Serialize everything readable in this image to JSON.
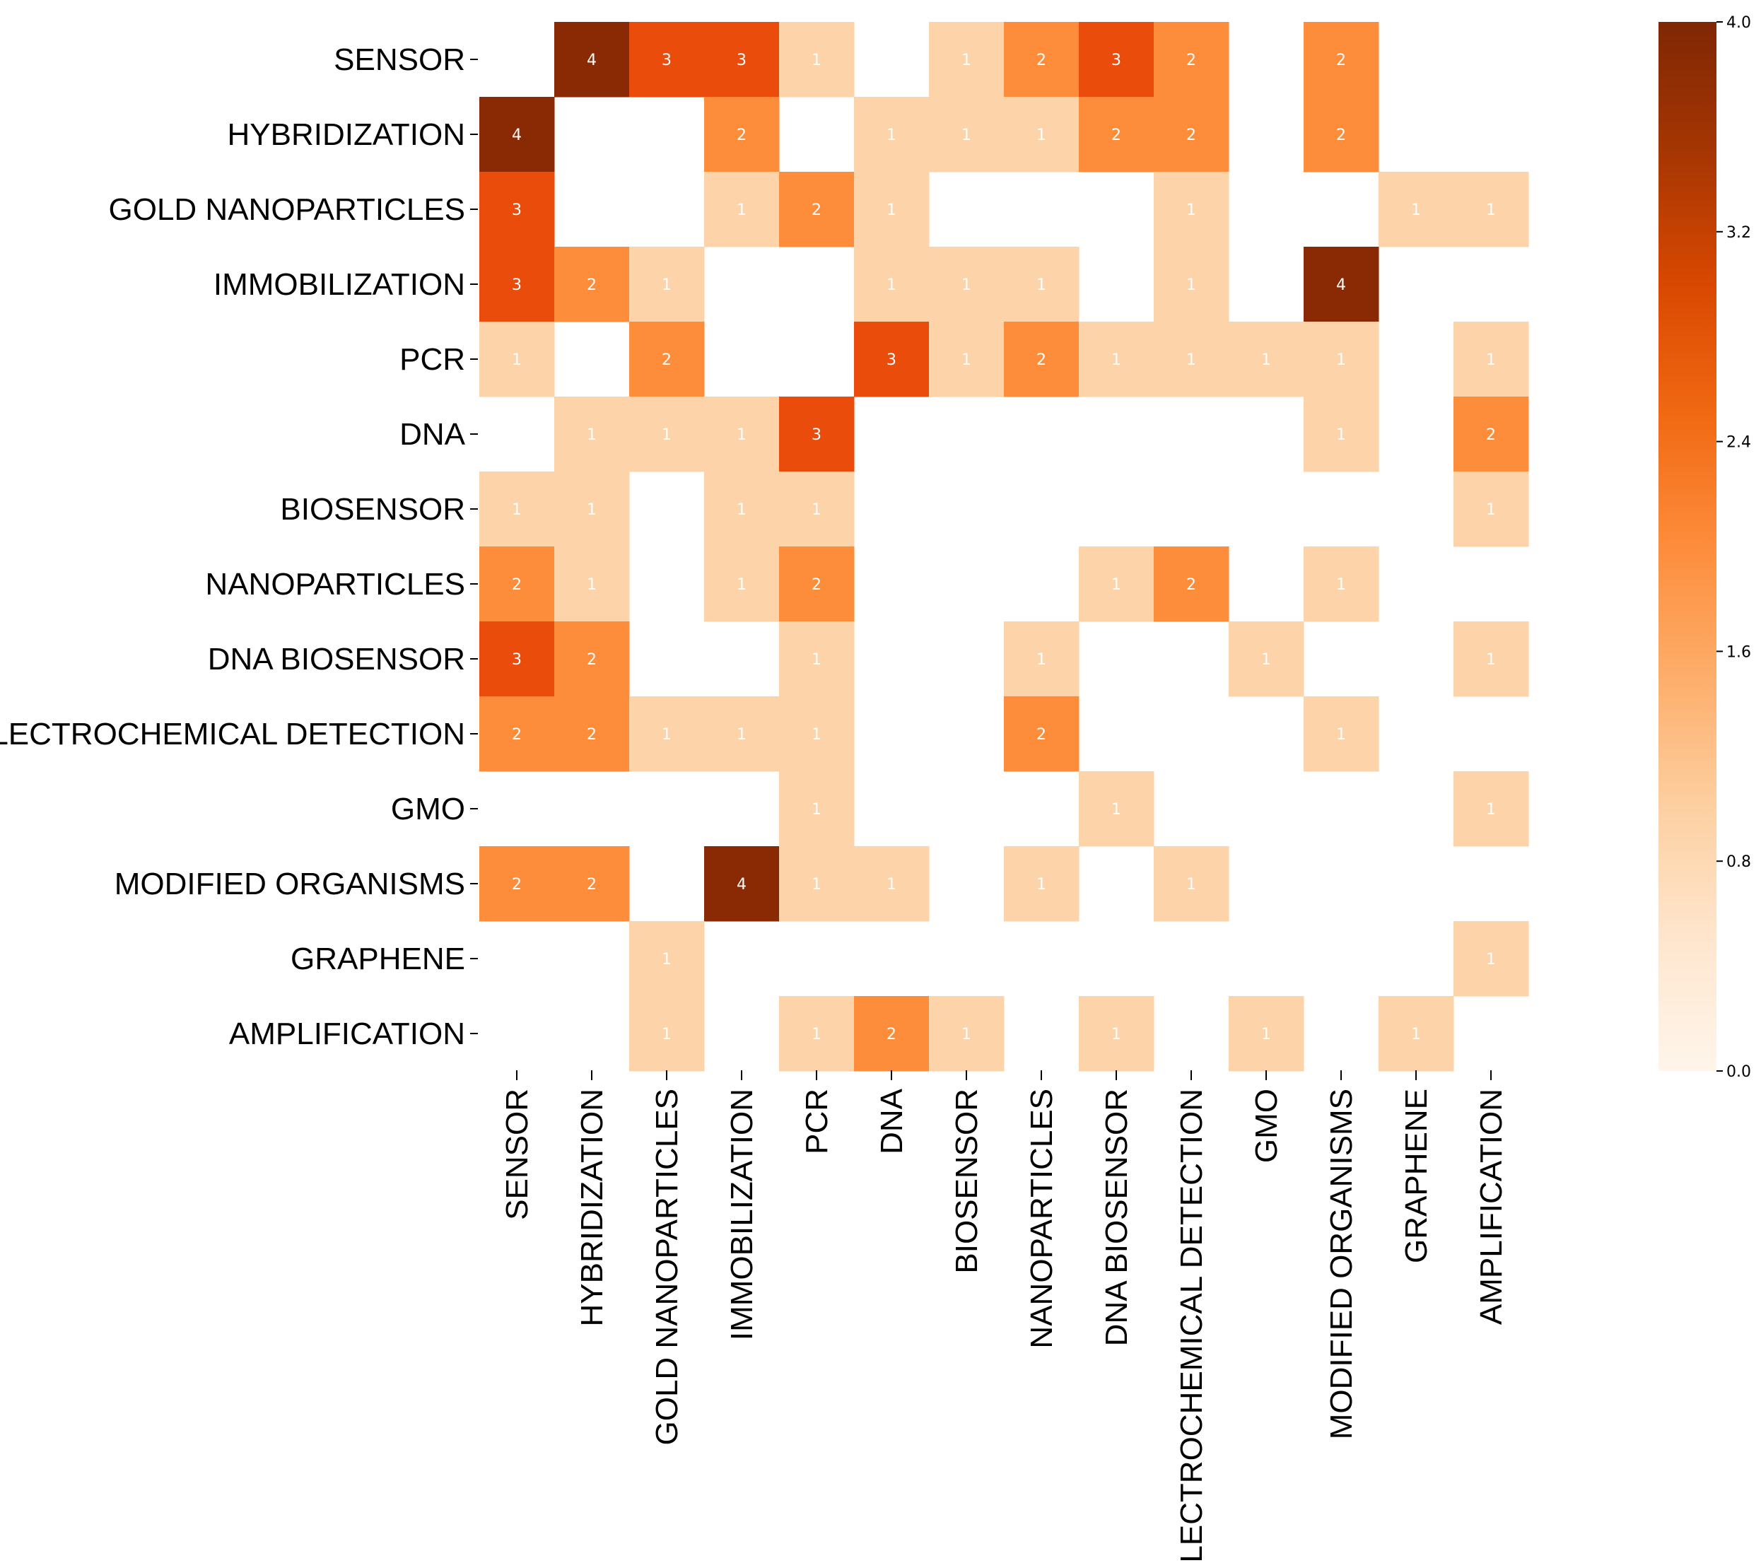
{
  "chart_data": {
    "type": "heatmap",
    "rows": [
      "SENSOR",
      "HYBRIDIZATION",
      "GOLD NANOPARTICLES",
      "IMMOBILIZATION",
      "PCR",
      "DNA",
      "BIOSENSOR",
      "NANOPARTICLES",
      "DNA BIOSENSOR",
      "ELECTROCHEMICAL DETECTION",
      "GMO",
      "MODIFIED ORGANISMS",
      "GRAPHENE",
      "AMPLIFICATION"
    ],
    "columns": [
      "SENSOR",
      "HYBRIDIZATION",
      "GOLD NANOPARTICLES",
      "IMMOBILIZATION",
      "PCR",
      "DNA",
      "BIOSENSOR",
      "NANOPARTICLES",
      "DNA BIOSENSOR",
      "ELECTROCHEMICAL DETECTION",
      "GMO",
      "MODIFIED ORGANISMS",
      "GRAPHENE",
      "AMPLIFICATION"
    ],
    "values": [
      [
        0,
        4,
        3,
        3,
        1,
        0,
        1,
        2,
        3,
        2,
        0,
        2,
        0,
        0
      ],
      [
        4,
        0,
        0,
        2,
        0,
        1,
        1,
        1,
        2,
        2,
        0,
        2,
        0,
        0
      ],
      [
        3,
        0,
        0,
        1,
        2,
        1,
        0,
        0,
        0,
        1,
        0,
        0,
        1,
        1
      ],
      [
        3,
        2,
        1,
        0,
        0,
        1,
        1,
        1,
        0,
        1,
        0,
        4,
        0,
        0
      ],
      [
        1,
        0,
        2,
        0,
        0,
        3,
        1,
        2,
        1,
        1,
        1,
        1,
        0,
        1
      ],
      [
        0,
        1,
        1,
        1,
        3,
        0,
        0,
        0,
        0,
        0,
        0,
        1,
        0,
        2
      ],
      [
        1,
        1,
        0,
        1,
        1,
        0,
        0,
        0,
        0,
        0,
        0,
        0,
        0,
        1
      ],
      [
        2,
        1,
        0,
        1,
        2,
        0,
        0,
        0,
        1,
        2,
        0,
        1,
        0,
        0
      ],
      [
        3,
        2,
        0,
        0,
        1,
        0,
        0,
        1,
        0,
        0,
        1,
        0,
        0,
        1
      ],
      [
        2,
        2,
        1,
        1,
        1,
        0,
        0,
        2,
        0,
        0,
        0,
        1,
        0,
        0
      ],
      [
        0,
        0,
        0,
        0,
        1,
        0,
        0,
        0,
        1,
        0,
        0,
        0,
        0,
        1
      ],
      [
        2,
        2,
        0,
        4,
        1,
        1,
        0,
        1,
        0,
        1,
        0,
        0,
        0,
        0
      ],
      [
        0,
        0,
        1,
        0,
        0,
        0,
        0,
        0,
        0,
        0,
        0,
        0,
        0,
        1
      ],
      [
        0,
        0,
        1,
        0,
        1,
        2,
        1,
        0,
        1,
        0,
        1,
        0,
        1,
        0
      ]
    ],
    "zero_cells_shown": false,
    "colorbar": {
      "vmin": 0.0,
      "vmax": 4.0,
      "ticks": [
        "0.0",
        "0.8",
        "1.6",
        "2.4",
        "3.2",
        "4.0"
      ],
      "colormap": "Oranges",
      "colors": {
        "1": "#fdd3a9",
        "2": "#fd8c3b",
        "3": "#e94c0b",
        "4": "#8a2a04"
      }
    },
    "title": "",
    "xlabel": "",
    "ylabel": ""
  }
}
